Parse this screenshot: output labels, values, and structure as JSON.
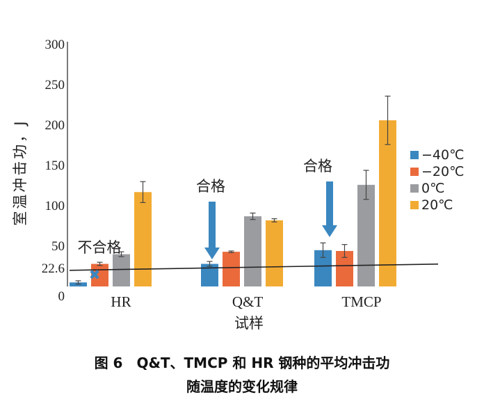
{
  "chart_data": {
    "type": "bar",
    "categories": [
      "HR",
      "Q&T",
      "TMCP"
    ],
    "series": [
      {
        "name": "−40℃",
        "color": "#3a87c0",
        "values": [
          5,
          28,
          45
        ],
        "errors": [
          2,
          3,
          9
        ]
      },
      {
        "name": "−20℃",
        "color": "#ea6a3c",
        "values": [
          28,
          43,
          44
        ],
        "errors": [
          2,
          1,
          8
        ]
      },
      {
        "name": "0℃",
        "color": "#9b9ca0",
        "values": [
          40,
          87,
          126
        ],
        "errors": [
          3,
          4,
          18
        ]
      },
      {
        "name": "20℃",
        "color": "#f2ab32",
        "values": [
          117,
          82,
          206
        ],
        "errors": [
          13,
          2,
          30
        ]
      }
    ],
    "yticks": [
      "300",
      "250",
      "200",
      "150",
      "100",
      "50",
      "22.6",
      "0"
    ],
    "ylim": [
      0,
      300
    ],
    "threshold": 22.6,
    "ylabel": "室温冲击功，J",
    "xlabel": "试样",
    "legend_position": "right",
    "annotations": [
      {
        "text": "不合格",
        "category": "HR"
      },
      {
        "text": "合格",
        "category": "Q&T"
      },
      {
        "text": "合格",
        "category": "TMCP"
      }
    ],
    "fail_mark": "✖"
  },
  "caption": {
    "line1": "图 6　Q&T、TMCP 和 HR 钢种的平均冲击功",
    "line2": "随温度的变化规律"
  }
}
